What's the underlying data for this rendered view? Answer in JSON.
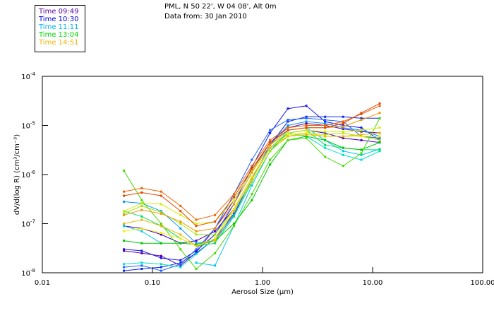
{
  "header": {
    "line1": "PML, N 50 22', W 04 08', Alt 0m",
    "line2": "Data from: 30 Jan 2010"
  },
  "legend": [
    {
      "label": "Time 09:49",
      "color": "#5a00a0"
    },
    {
      "label": "Time 10:30",
      "color": "#0000e0"
    },
    {
      "label": "Time 11:11",
      "color": "#00b4f0"
    },
    {
      "label": "Time 13:04",
      "color": "#00d800"
    },
    {
      "label": "Time 14:51",
      "color": "#f0b400"
    }
  ],
  "chart_data": {
    "type": "line",
    "title": "",
    "xlabel": "Aerosol Size (µm)",
    "ylabel": "dV/d(log R) (cm³/cm⁻³)",
    "xscale": "log",
    "yscale": "log",
    "xlim": [
      0.01,
      100
    ],
    "ylim": [
      1e-08,
      0.0001
    ],
    "xticks": [
      {
        "value": 0.01,
        "label": "0.01"
      },
      {
        "value": 0.1,
        "label": "0.10"
      },
      {
        "value": 1,
        "label": "1.00"
      },
      {
        "value": 10,
        "label": "10.00"
      },
      {
        "value": 100,
        "label": "100.00"
      }
    ],
    "yticks": [
      {
        "value": 0.0001,
        "base": "10",
        "exp": "-4"
      },
      {
        "value": 1e-05,
        "base": "10",
        "exp": "-5"
      },
      {
        "value": 1e-06,
        "base": "10",
        "exp": "-6"
      },
      {
        "value": 1e-07,
        "base": "10",
        "exp": "-7"
      },
      {
        "value": 1e-08,
        "base": "10",
        "exp": "-8"
      }
    ],
    "x": [
      0.055,
      0.08,
      0.12,
      0.18,
      0.25,
      0.37,
      0.55,
      0.8,
      1.17,
      1.7,
      2.5,
      3.7,
      5.4,
      7.9,
      11.6
    ],
    "series": [
      {
        "name": "s1",
        "color": "#5a00a0",
        "values": [
          2.8e-08,
          2.5e-08,
          2.2e-08,
          1.4e-08,
          2.6e-08,
          8e-08,
          3e-07,
          1.2e-06,
          4.5e-06,
          9e-06,
          1.1e-05,
          1e-05,
          8.5e-06,
          7.5e-06,
          7e-06
        ]
      },
      {
        "name": "s2",
        "color": "#4b00c8",
        "values": [
          9e-08,
          8e-08,
          6e-08,
          4e-08,
          4.5e-08,
          7e-08,
          2e-07,
          9e-07,
          3.5e-06,
          7e-06,
          8e-06,
          7e-06,
          5.5e-06,
          5e-06,
          4.5e-06
        ]
      },
      {
        "name": "s3",
        "color": "#1414f0",
        "values": [
          3e-08,
          2.8e-08,
          2e-08,
          1.8e-08,
          2.8e-08,
          6e-08,
          2.5e-07,
          1.4e-06,
          7e-06,
          2.2e-05,
          2.5e-05,
          1.2e-05,
          1e-05,
          9e-06,
          5e-06
        ]
      },
      {
        "name": "s4",
        "color": "#0a28e6",
        "values": [
          1.1e-08,
          1.2e-08,
          1.3e-08,
          1.6e-08,
          2.5e-08,
          5e-08,
          1.6e-07,
          8e-07,
          4e-06,
          1.2e-05,
          1.5e-05,
          1.5e-05,
          1.5e-05,
          1.4e-05,
          1.4e-05
        ]
      },
      {
        "name": "s5",
        "color": "#1e64ff",
        "values": [
          1.3e-08,
          1.4e-08,
          1.1e-08,
          1.5e-08,
          3e-08,
          8e-08,
          4e-07,
          2e-06,
          8e-06,
          1.3e-05,
          1.4e-05,
          1.3e-05,
          1.2e-05,
          6e-06,
          5.5e-06
        ]
      },
      {
        "name": "s6",
        "color": "#0096ff",
        "values": [
          2.8e-07,
          2.6e-07,
          1.8e-07,
          8e-08,
          4e-08,
          4.5e-08,
          1.5e-07,
          8e-07,
          4e-06,
          1e-05,
          1.2e-05,
          1.1e-05,
          9e-06,
          8e-06,
          6e-06
        ]
      },
      {
        "name": "s7",
        "color": "#00c8f0",
        "values": [
          9e-08,
          7e-08,
          4e-08,
          null,
          1.6e-08,
          1.4e-08,
          9e-08,
          6e-07,
          3e-06,
          8e-06,
          9e-06,
          5e-06,
          3e-06,
          2.5e-06,
          3.3e-06
        ]
      },
      {
        "name": "s8",
        "color": "#00e0c8",
        "values": [
          1.5e-08,
          1.6e-08,
          1.5e-08,
          1.3e-08,
          2.4e-08,
          5e-08,
          2e-07,
          9e-07,
          3.5e-06,
          7e-06,
          6e-06,
          3.5e-06,
          2.5e-06,
          2e-06,
          3e-06
        ]
      },
      {
        "name": "s9",
        "color": "#00dc64",
        "values": [
          1.8e-07,
          1.4e-07,
          9e-08,
          5e-08,
          3.5e-08,
          4e-08,
          1.4e-07,
          7e-07,
          3e-06,
          7e-06,
          8e-06,
          4e-06,
          3.5e-06,
          3.2e-06,
          3.2e-06
        ]
      },
      {
        "name": "s10",
        "color": "#00c800",
        "values": [
          4.5e-08,
          4e-08,
          4e-08,
          4e-08,
          3.8e-08,
          4.5e-08,
          1e-07,
          3e-07,
          1.6e-06,
          5e-06,
          6e-06,
          5e-06,
          3.5e-06,
          3.2e-06,
          4.5e-06
        ]
      },
      {
        "name": "s11",
        "color": "#46dc00",
        "values": [
          1.2e-06,
          3e-07,
          1e-07,
          3e-08,
          1.2e-08,
          2.5e-08,
          9e-08,
          4e-07,
          2e-06,
          5e-06,
          5.5e-06,
          2.3e-06,
          1.5e-06,
          2.7e-06,
          1.4e-05
        ]
      },
      {
        "name": "s12",
        "color": "#a0e600",
        "values": [
          1.6e-07,
          2.3e-07,
          1.7e-07,
          1e-07,
          6e-08,
          6e-08,
          2e-07,
          7e-07,
          3e-06,
          6e-06,
          7e-06,
          6.5e-06,
          7e-06,
          6e-06,
          5e-06
        ]
      },
      {
        "name": "s13",
        "color": "#d2f000",
        "values": [
          1.8e-07,
          2.6e-07,
          2.5e-07,
          1.5e-07,
          1e-07,
          1.1e-07,
          3e-07,
          1.2e-06,
          4e-06,
          7e-06,
          8e-06,
          7.5e-06,
          7.5e-06,
          8e-06,
          9e-06
        ]
      },
      {
        "name": "s14",
        "color": "#f0f000",
        "values": [
          7e-08,
          8e-08,
          6.5e-08,
          5e-08,
          3.5e-08,
          5e-08,
          2e-07,
          9e-07,
          3.5e-06,
          6.5e-06,
          7e-06,
          6e-06,
          6e-06,
          6e-06,
          6e-06
        ]
      },
      {
        "name": "s15",
        "color": "#f0b400",
        "values": [
          1e-07,
          1.2e-07,
          9e-08,
          6e-08,
          3.5e-08,
          4.5e-08,
          1.8e-07,
          8e-07,
          3.5e-06,
          6e-06,
          6.5e-06,
          6e-06,
          6e-06,
          6.5e-06,
          7e-06
        ]
      },
      {
        "name": "s16",
        "color": "#f09600",
        "values": [
          1.5e-07,
          1.9e-07,
          1.6e-07,
          1.1e-07,
          7e-08,
          8e-08,
          2.5e-07,
          1.1e-06,
          4e-06,
          8e-06,
          9e-06,
          9e-06,
          9.5e-06,
          1.3e-05,
          1.8e-05
        ]
      },
      {
        "name": "s17",
        "color": "#f06400",
        "values": [
          4.5e-07,
          5.3e-07,
          4.5e-07,
          2.3e-07,
          1.2e-07,
          1.5e-07,
          4e-07,
          1.5e-06,
          5e-06,
          9e-06,
          1e-05,
          1e-05,
          1.2e-05,
          1.7e-05,
          2.5e-05
        ]
      },
      {
        "name": "s18",
        "color": "#e64600",
        "values": [
          3.7e-07,
          4.3e-07,
          3.7e-07,
          1.8e-07,
          9e-08,
          1.1e-07,
          3.5e-07,
          1.3e-06,
          4.5e-06,
          8e-06,
          9e-06,
          9e-06,
          1.1e-05,
          1.8e-05,
          2.8e-05
        ]
      }
    ]
  }
}
